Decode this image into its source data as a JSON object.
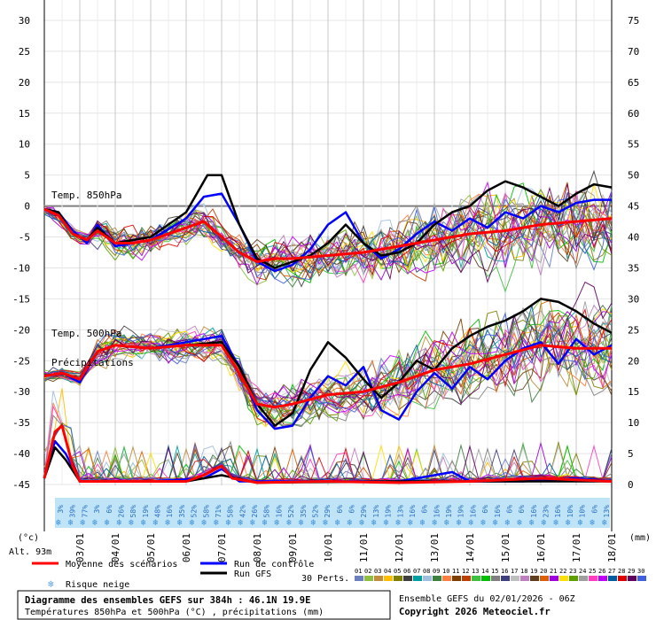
{
  "chart_data": {
    "type": "line",
    "x_dates": [
      "03/01",
      "04/01",
      "05/01",
      "06/01",
      "07/01",
      "08/01",
      "09/01",
      "10/01",
      "11/01",
      "12/01",
      "13/01",
      "14/01",
      "15/01",
      "16/01",
      "17/01",
      "18/01"
    ],
    "left_axis": {
      "ticks": [
        30,
        25,
        20,
        15,
        10,
        5,
        0,
        -5,
        -10,
        -15,
        -20,
        -25,
        -30,
        -35,
        -40,
        -45
      ],
      "range": [
        -45,
        30
      ],
      "unit_label": "(°c)"
    },
    "right_axis": {
      "ticks": [
        75,
        70,
        65,
        60,
        55,
        50,
        45,
        40,
        35,
        30,
        25,
        20,
        15,
        10,
        5,
        0
      ],
      "range": [
        0,
        75
      ],
      "unit_label": "(mm)"
    },
    "altitude_label": "Alt. 93m",
    "panel_labels": {
      "t850": "Temp. 850hPa",
      "t500": "Temp. 500hPa",
      "precip": "Précipitations"
    },
    "snow_risk": [
      "3%",
      "39%",
      "77%",
      "3%",
      "6%",
      "26%",
      "58%",
      "19%",
      "48%",
      "16%",
      "35%",
      "52%",
      "58%",
      "71%",
      "58%",
      "42%",
      "26%",
      "58%",
      "16%",
      "52%",
      "35%",
      "52%",
      "29%",
      "6%",
      "6%",
      "29%",
      "13%",
      "19%",
      "13%",
      "16%",
      "6%",
      "16%",
      "19%",
      "19%",
      "16%",
      "6%",
      "16%",
      "6%",
      "6%",
      "16%",
      "23%",
      "16%",
      "10%",
      "10%",
      "6%",
      "13%"
    ],
    "series": [
      {
        "name": "Moyenne des scénarios",
        "color": "#ff0000",
        "t850": [
          [
            2.0,
            -0.5
          ],
          [
            2.4,
            -1.5
          ],
          [
            2.8,
            -4.5
          ],
          [
            3.2,
            -5.5
          ],
          [
            3.5,
            -4.0
          ],
          [
            4.0,
            -6.0
          ],
          [
            4.5,
            -6.0
          ],
          [
            5.0,
            -5.5
          ],
          [
            5.5,
            -4.5
          ],
          [
            6.0,
            -3.5
          ],
          [
            6.5,
            -2.5
          ],
          [
            7.0,
            -5.0
          ],
          [
            7.5,
            -7.5
          ],
          [
            8.0,
            -9.0
          ],
          [
            8.5,
            -8.5
          ],
          [
            9.0,
            -8.5
          ],
          [
            10.0,
            -8.0
          ],
          [
            11.0,
            -7.5
          ],
          [
            12.0,
            -6.5
          ],
          [
            13.0,
            -5.5
          ],
          [
            14.0,
            -4.5
          ],
          [
            15.0,
            -4.0
          ],
          [
            16.0,
            -3.0
          ],
          [
            17.0,
            -2.5
          ],
          [
            18.0,
            -2.0
          ]
        ],
        "t500": [
          [
            2.0,
            -27.5
          ],
          [
            2.5,
            -27.0
          ],
          [
            3.0,
            -28.0
          ],
          [
            3.5,
            -23.5
          ],
          [
            4.0,
            -22.5
          ],
          [
            5.0,
            -23.0
          ],
          [
            6.0,
            -22.5
          ],
          [
            7.0,
            -22.5
          ],
          [
            7.5,
            -27.0
          ],
          [
            8.0,
            -32.0
          ],
          [
            8.5,
            -32.5
          ],
          [
            9.0,
            -32.0
          ],
          [
            10.0,
            -30.5
          ],
          [
            11.0,
            -30.0
          ],
          [
            12.0,
            -28.5
          ],
          [
            13.0,
            -26.5
          ],
          [
            14.0,
            -25.5
          ],
          [
            15.0,
            -24.0
          ],
          [
            16.0,
            -22.5
          ],
          [
            17.0,
            -23.0
          ],
          [
            18.0,
            -23.0
          ]
        ],
        "precip": [
          [
            2.0,
            1.0
          ],
          [
            2.3,
            8.5
          ],
          [
            2.5,
            9.5
          ],
          [
            2.8,
            3.0
          ],
          [
            3.0,
            0.5
          ],
          [
            4.0,
            0.5
          ],
          [
            5.0,
            0.5
          ],
          [
            6.0,
            0.5
          ],
          [
            6.5,
            1.5
          ],
          [
            7.0,
            3.0
          ],
          [
            7.3,
            1.0
          ],
          [
            8.0,
            0.3
          ],
          [
            10.0,
            0.5
          ],
          [
            12.0,
            0.3
          ],
          [
            14.0,
            0.5
          ],
          [
            16.0,
            1.0
          ],
          [
            18.0,
            0.5
          ]
        ]
      },
      {
        "name": "Run de contrôle",
        "color": "#0000ff",
        "t850": [
          [
            2.0,
            -0.5
          ],
          [
            2.4,
            -1.0
          ],
          [
            2.8,
            -4.0
          ],
          [
            3.2,
            -6.0
          ],
          [
            3.5,
            -3.0
          ],
          [
            4.0,
            -6.5
          ],
          [
            5.0,
            -5.5
          ],
          [
            6.0,
            -2.0
          ],
          [
            6.5,
            1.5
          ],
          [
            7.0,
            2.0
          ],
          [
            7.5,
            -3.0
          ],
          [
            8.0,
            -9.0
          ],
          [
            8.5,
            -10.5
          ],
          [
            9.0,
            -9.5
          ],
          [
            9.5,
            -7.0
          ],
          [
            10.0,
            -3.0
          ],
          [
            10.5,
            -1.0
          ],
          [
            11.0,
            -6.0
          ],
          [
            11.5,
            -8.5
          ],
          [
            12.0,
            -7.0
          ],
          [
            12.5,
            -4.5
          ],
          [
            13.0,
            -2.5
          ],
          [
            13.5,
            -4.0
          ],
          [
            14.0,
            -2.0
          ],
          [
            14.5,
            -3.5
          ],
          [
            15.0,
            -1.0
          ],
          [
            15.5,
            -2.0
          ],
          [
            16.0,
            0.0
          ],
          [
            16.5,
            -1.0
          ],
          [
            17.0,
            0.5
          ],
          [
            17.5,
            1.0
          ],
          [
            18.0,
            1.0
          ]
        ],
        "t500": [
          [
            2.0,
            -27.5
          ],
          [
            2.5,
            -27.0
          ],
          [
            3.0,
            -28.5
          ],
          [
            3.5,
            -23.5
          ],
          [
            4.0,
            -22.5
          ],
          [
            5.0,
            -23.0
          ],
          [
            6.0,
            -22.0
          ],
          [
            7.0,
            -21.0
          ],
          [
            7.5,
            -26.0
          ],
          [
            8.0,
            -33.0
          ],
          [
            8.5,
            -36.0
          ],
          [
            9.0,
            -35.5
          ],
          [
            9.5,
            -31.0
          ],
          [
            10.0,
            -27.5
          ],
          [
            10.5,
            -29.0
          ],
          [
            11.0,
            -26.0
          ],
          [
            11.5,
            -33.0
          ],
          [
            12.0,
            -34.5
          ],
          [
            12.5,
            -30.0
          ],
          [
            13.0,
            -27.0
          ],
          [
            13.5,
            -29.5
          ],
          [
            14.0,
            -26.0
          ],
          [
            14.5,
            -28.0
          ],
          [
            15.0,
            -25.0
          ],
          [
            15.5,
            -23.0
          ],
          [
            16.0,
            -22.0
          ],
          [
            16.5,
            -25.5
          ],
          [
            17.0,
            -21.5
          ],
          [
            17.5,
            -24.0
          ],
          [
            18.0,
            -22.5
          ]
        ],
        "precip": [
          [
            2.0,
            1.0
          ],
          [
            2.3,
            7.0
          ],
          [
            2.6,
            5.0
          ],
          [
            3.0,
            0.5
          ],
          [
            5.0,
            0.5
          ],
          [
            6.5,
            1.0
          ],
          [
            7.0,
            2.5
          ],
          [
            7.5,
            0.5
          ],
          [
            10.0,
            0.5
          ],
          [
            12.0,
            0.5
          ],
          [
            13.5,
            2.0
          ],
          [
            14.0,
            0.5
          ],
          [
            15.5,
            0.5
          ],
          [
            17.0,
            1.0
          ],
          [
            18.0,
            0.5
          ]
        ]
      },
      {
        "name": "Run GFS",
        "color": "#000000",
        "t850": [
          [
            2.0,
            -0.5
          ],
          [
            2.4,
            -1.0
          ],
          [
            2.8,
            -4.5
          ],
          [
            3.2,
            -5.5
          ],
          [
            3.5,
            -3.5
          ],
          [
            4.0,
            -6.0
          ],
          [
            5.0,
            -5.0
          ],
          [
            6.0,
            -1.0
          ],
          [
            6.6,
            5.0
          ],
          [
            7.0,
            5.0
          ],
          [
            7.5,
            -3.0
          ],
          [
            8.0,
            -8.5
          ],
          [
            8.5,
            -10.0
          ],
          [
            9.0,
            -9.0
          ],
          [
            9.5,
            -8.0
          ],
          [
            10.0,
            -6.0
          ],
          [
            10.5,
            -3.0
          ],
          [
            11.0,
            -6.0
          ],
          [
            11.5,
            -8.0
          ],
          [
            12.0,
            -7.5
          ],
          [
            12.5,
            -6.0
          ],
          [
            13.0,
            -3.0
          ],
          [
            13.5,
            -1.0
          ],
          [
            14.0,
            0.0
          ],
          [
            14.5,
            2.5
          ],
          [
            15.0,
            4.0
          ],
          [
            15.5,
            3.0
          ],
          [
            16.0,
            1.5
          ],
          [
            16.5,
            0.0
          ],
          [
            17.0,
            2.0
          ],
          [
            17.5,
            3.5
          ],
          [
            18.0,
            3.0
          ]
        ],
        "t500": [
          [
            2.0,
            -27.5
          ],
          [
            2.5,
            -27.0
          ],
          [
            3.0,
            -28.0
          ],
          [
            3.5,
            -23.5
          ],
          [
            4.0,
            -22.5
          ],
          [
            5.0,
            -23.0
          ],
          [
            6.0,
            -22.5
          ],
          [
            7.0,
            -22.0
          ],
          [
            7.5,
            -26.0
          ],
          [
            8.0,
            -32.0
          ],
          [
            8.5,
            -35.5
          ],
          [
            9.0,
            -33.5
          ],
          [
            9.5,
            -26.5
          ],
          [
            10.0,
            -22.0
          ],
          [
            10.5,
            -24.5
          ],
          [
            11.0,
            -28.0
          ],
          [
            11.5,
            -31.0
          ],
          [
            12.0,
            -28.5
          ],
          [
            12.5,
            -25.0
          ],
          [
            13.0,
            -26.5
          ],
          [
            13.5,
            -23.0
          ],
          [
            14.0,
            -21.0
          ],
          [
            14.5,
            -19.5
          ],
          [
            15.0,
            -18.5
          ],
          [
            15.5,
            -17.0
          ],
          [
            16.0,
            -15.0
          ],
          [
            16.5,
            -15.5
          ],
          [
            17.0,
            -17.0
          ],
          [
            17.5,
            -19.0
          ],
          [
            18.0,
            -20.5
          ]
        ],
        "precip": [
          [
            2.0,
            1.0
          ],
          [
            2.3,
            6.0
          ],
          [
            2.6,
            4.0
          ],
          [
            3.0,
            0.5
          ],
          [
            6.0,
            0.5
          ],
          [
            7.0,
            1.5
          ],
          [
            8.0,
            0.3
          ],
          [
            12.0,
            0.5
          ],
          [
            14.0,
            0.5
          ],
          [
            16.0,
            0.5
          ],
          [
            18.0,
            0.5
          ]
        ]
      }
    ],
    "perturbations": {
      "label": "30 Perts.",
      "numbers": [
        "01",
        "02",
        "03",
        "04",
        "05",
        "06",
        "07",
        "08",
        "09",
        "10",
        "11",
        "12",
        "13",
        "14",
        "15",
        "16",
        "17",
        "18",
        "19",
        "20",
        "21",
        "22",
        "23",
        "24",
        "25",
        "26",
        "27",
        "28",
        "29",
        "30"
      ],
      "colors": [
        "#6e7fbf",
        "#8fbf3f",
        "#bf8f3f",
        "#ffbf00",
        "#7f7f00",
        "#3f3f3f",
        "#009f9f",
        "#9fbfdf",
        "#3f7f3f",
        "#ff7f3f",
        "#7f3f00",
        "#bf3f00",
        "#3fbf3f",
        "#00bf00",
        "#7f7f7f",
        "#3f3f7f",
        "#bfbfbf",
        "#bf7fbf",
        "#5f3f1f",
        "#df5f00",
        "#9f00df",
        "#ffdf00",
        "#5f9f00",
        "#9f9f9f",
        "#ff3fbf",
        "#bf00ff",
        "#005f9f",
        "#df0000",
        "#5f005f",
        "#3f5fdf"
      ]
    },
    "snow_label": "Risque neige",
    "footer": {
      "title": "Diagramme des ensembles GEFS sur 384h : 46.1N 19.9E",
      "subtitle": "Températures 850hPa et 500hPa (°C) , précipitations (mm)",
      "ensemble_run": "Ensemble GEFS du 02/01/2026 - 06Z",
      "copyright": "Copyright 2026 Meteociel.fr"
    }
  }
}
